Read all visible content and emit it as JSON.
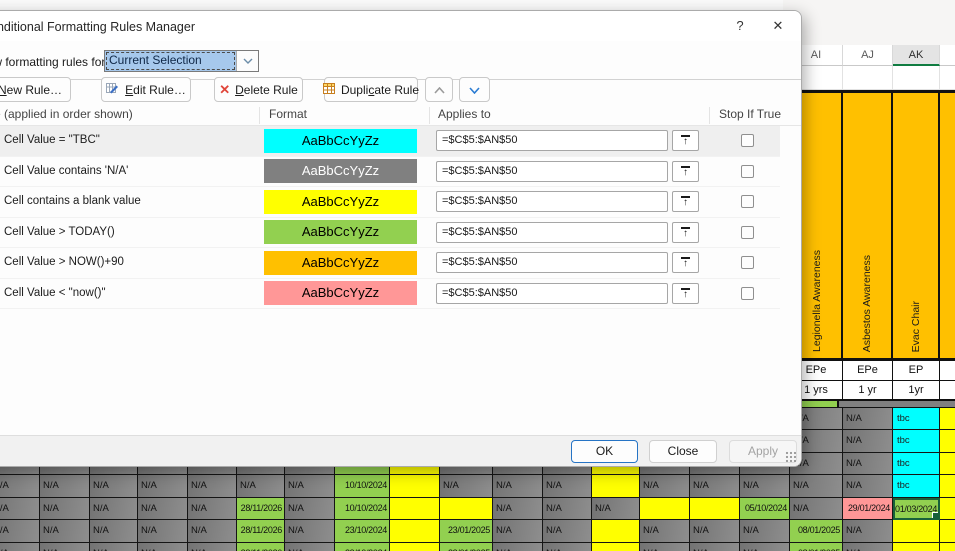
{
  "dialog": {
    "title": "Conditional Formatting Rules Manager",
    "icons": {
      "help": "?",
      "close": "✕"
    },
    "show_rules_label": "Show formatting rules for:",
    "scope_value": "Current Selection",
    "toolbar": {
      "new_rule": {
        "label": "New Rule…",
        "pre": "",
        "accel": "N",
        "post": "ew Rule…"
      },
      "edit_rule": {
        "label": "Edit Rule…",
        "pre": "",
        "accel": "E",
        "post": "dit Rule…"
      },
      "delete_rule": {
        "label": "Delete Rule",
        "pre": "",
        "accel": "D",
        "post": "elete Rule"
      },
      "duplicate_rule": {
        "label": "Duplicate Rule",
        "pre": "Dupli",
        "accel": "c",
        "post": "ate Rule"
      }
    },
    "table": {
      "rule_header": "Rule (applied in order shown)",
      "format_header": "Format",
      "applies_header": "Applies to",
      "stop_header": "Stop If True",
      "sample_text": "AaBbCcYyZz",
      "rules": [
        {
          "desc": "Cell Value = \"TBC\"",
          "fill": "#00FFFF",
          "text": "#000000",
          "applies": "=$C$5:$AN$50",
          "stop_if_true": false,
          "selected": true
        },
        {
          "desc": "Cell Value contains 'N/A'",
          "fill": "#808080",
          "text": "#FFFFFF",
          "applies": "=$C$5:$AN$50",
          "stop_if_true": false,
          "selected": false
        },
        {
          "desc": "Cell contains a blank value",
          "fill": "#FFFF00",
          "text": "#000000",
          "applies": "=$C$5:$AN$50",
          "stop_if_true": false,
          "selected": false
        },
        {
          "desc": "Cell Value > TODAY()",
          "fill": "#92D050",
          "text": "#000000",
          "applies": "=$C$5:$AN$50",
          "stop_if_true": false,
          "selected": false
        },
        {
          "desc": "Cell Value > NOW()+90",
          "fill": "#FFC000",
          "text": "#000000",
          "applies": "=$C$5:$AN$50",
          "stop_if_true": false,
          "selected": false
        },
        {
          "desc": "Cell Value < \"now()\"",
          "fill": "#FF9797",
          "text": "#000000",
          "applies": "=$C$5:$AN$50",
          "stop_if_true": false,
          "selected": false
        }
      ]
    },
    "footer": {
      "ok": "OK",
      "close": "Close",
      "apply": "Apply"
    }
  },
  "sheet": {
    "col_headers": [
      {
        "label": "AI",
        "selected": false
      },
      {
        "label": "AJ",
        "selected": false
      },
      {
        "label": "AK",
        "selected": true
      },
      {
        "label": "",
        "selected": false
      }
    ],
    "rotated_headers": [
      "Legionella Awareness",
      "Asbestos Awareness",
      "Evac Chair",
      ""
    ],
    "type_row": [
      "EPe",
      "EPe",
      "EP",
      ""
    ],
    "freq_row": [
      "1 yrs",
      "1 yr",
      "1yr",
      ""
    ],
    "rows": [
      {
        "start": 16,
        "cells": [
          [
            "N/A",
            "na"
          ],
          [
            "N/A",
            "na"
          ],
          [
            "tbc",
            "tbc"
          ],
          [
            "",
            "yellow"
          ]
        ]
      },
      {
        "start": 16,
        "cells": [
          [
            "N/A",
            "na"
          ],
          [
            "N/A",
            "na"
          ],
          [
            "tbc",
            "tbc"
          ],
          [
            "",
            "yellow"
          ]
        ]
      },
      {
        "start": 0,
        "cells": [
          [
            "N/A",
            "na"
          ],
          [
            "N/A",
            "na"
          ],
          [
            "N/A",
            "na"
          ],
          [
            "N/A",
            "na"
          ],
          [
            "N/A",
            "na"
          ],
          [
            "N/A",
            "na"
          ],
          [
            "N/A",
            "na"
          ],
          [
            "",
            "green"
          ],
          [
            "",
            "yellow"
          ],
          [
            "N/A",
            "na"
          ],
          [
            "N/A",
            "na"
          ],
          [
            "N/A",
            "na"
          ],
          [
            "",
            "yellow"
          ],
          [
            "N/A",
            "na"
          ],
          [
            "N/A",
            "na"
          ],
          [
            "N/A",
            "na"
          ],
          [
            "N/A",
            "na"
          ],
          [
            "N/A",
            "na"
          ],
          [
            "tbc",
            "tbc"
          ],
          [
            "",
            "yellow"
          ]
        ]
      },
      {
        "start": 0,
        "cells": [
          [
            "N/A",
            "na"
          ],
          [
            "N/A",
            "na"
          ],
          [
            "N/A",
            "na"
          ],
          [
            "N/A",
            "na"
          ],
          [
            "N/A",
            "na"
          ],
          [
            "N/A",
            "na"
          ],
          [
            "N/A",
            "na"
          ],
          [
            "10/10/2024",
            "green"
          ],
          [
            "",
            "yellow"
          ],
          [
            "N/A",
            "na"
          ],
          [
            "N/A",
            "na"
          ],
          [
            "N/A",
            "na"
          ],
          [
            "",
            "yellow"
          ],
          [
            "N/A",
            "na"
          ],
          [
            "N/A",
            "na"
          ],
          [
            "N/A",
            "na"
          ],
          [
            "N/A",
            "na"
          ],
          [
            "N/A",
            "na"
          ],
          [
            "tbc",
            "tbc"
          ],
          [
            "",
            "yellow"
          ]
        ]
      },
      {
        "start": 0,
        "cells": [
          [
            "N/A",
            "na"
          ],
          [
            "N/A",
            "na"
          ],
          [
            "N/A",
            "na"
          ],
          [
            "N/A",
            "na"
          ],
          [
            "N/A",
            "na"
          ],
          [
            "28/11/2026",
            "green"
          ],
          [
            "N/A",
            "na"
          ],
          [
            "10/10/2024",
            "green"
          ],
          [
            "",
            "yellow"
          ],
          [
            "",
            "yellow"
          ],
          [
            "N/A",
            "na"
          ],
          [
            "N/A",
            "na"
          ],
          [
            "N/A",
            "na"
          ],
          [
            "",
            "yellow"
          ],
          [
            "",
            "yellow"
          ],
          [
            "05/10/2024",
            "green"
          ],
          [
            "N/A",
            "na"
          ],
          [
            "29/01/2024",
            "pink"
          ],
          [
            "01/03/2024",
            "sel"
          ],
          [
            "",
            "yellow"
          ]
        ]
      },
      {
        "start": 0,
        "cells": [
          [
            "N/A",
            "na"
          ],
          [
            "N/A",
            "na"
          ],
          [
            "N/A",
            "na"
          ],
          [
            "N/A",
            "na"
          ],
          [
            "N/A",
            "na"
          ],
          [
            "28/11/2026",
            "green"
          ],
          [
            "N/A",
            "na"
          ],
          [
            "23/10/2024",
            "green"
          ],
          [
            "",
            "yellow"
          ],
          [
            "23/01/2025",
            "green"
          ],
          [
            "N/A",
            "na"
          ],
          [
            "N/A",
            "na"
          ],
          [
            "",
            "yellow"
          ],
          [
            "N/A",
            "na"
          ],
          [
            "N/A",
            "na"
          ],
          [
            "N/A",
            "na"
          ],
          [
            "08/01/2025",
            "green"
          ],
          [
            "N/A",
            "na"
          ],
          [
            "",
            "yellow"
          ],
          [
            "",
            "yellow"
          ]
        ]
      },
      {
        "start": 0,
        "cells": [
          [
            "N/A",
            "na"
          ],
          [
            "N/A",
            "na"
          ],
          [
            "N/A",
            "na"
          ],
          [
            "N/A",
            "na"
          ],
          [
            "N/A",
            "na"
          ],
          [
            "28/11/2026",
            "green"
          ],
          [
            "N/A",
            "na"
          ],
          [
            "23/10/2024",
            "green"
          ],
          [
            "",
            "yellow"
          ],
          [
            "23/01/2025",
            "green"
          ],
          [
            "N/A",
            "na"
          ],
          [
            "N/A",
            "na"
          ],
          [
            "",
            "yellow"
          ],
          [
            "N/A",
            "na"
          ],
          [
            "N/A",
            "na"
          ],
          [
            "N/A",
            "na"
          ],
          [
            "08/01/2025",
            "green"
          ],
          [
            "N/A",
            "na"
          ],
          [
            "",
            "yellow"
          ],
          [
            "",
            "yellow"
          ]
        ]
      }
    ]
  },
  "colors": {
    "cyan": "#00FFFF",
    "gray": "#808080",
    "yellow": "#FFFF00",
    "green": "#92D050",
    "orange": "#FFC000",
    "pink": "#FF9797",
    "excel_selection_green": "#107C41",
    "ok_button_border": "#2674C5",
    "scope_highlight_blue": "#A6C8EC"
  }
}
